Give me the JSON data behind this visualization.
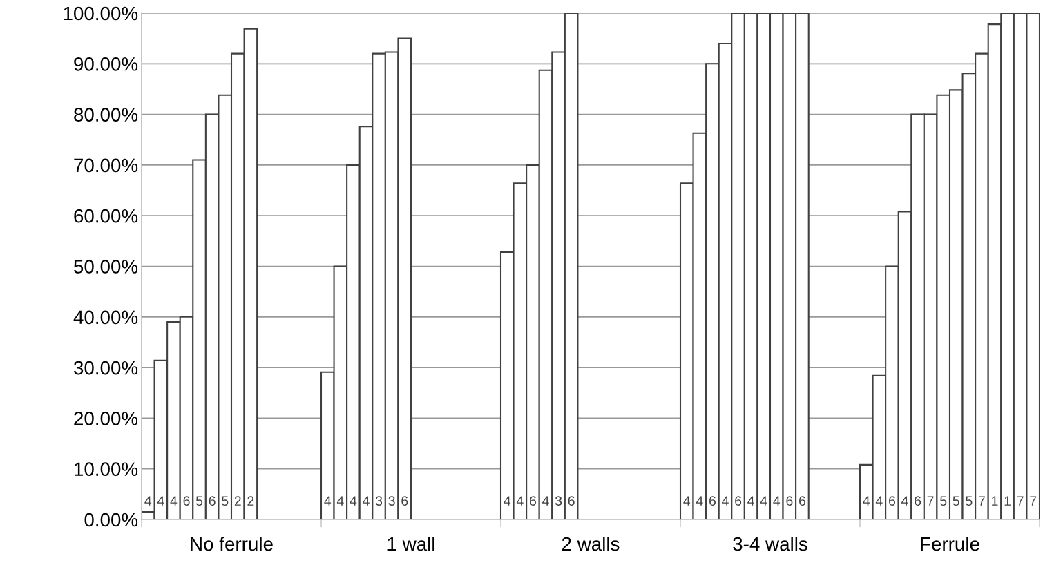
{
  "chart_data": {
    "type": "bar",
    "categories": [
      "No ferrule",
      "1 wall",
      "2 walls",
      "3-4 walls",
      "Ferrule"
    ],
    "series": [
      {
        "color": "#ffffff",
        "values": [
          1.5,
          29.1,
          52.8,
          66.4,
          10.8
        ]
      },
      {
        "color": "#ffffff",
        "values": [
          31.4,
          50,
          66.4,
          76.3,
          28.4
        ]
      },
      {
        "color": "#ffffff",
        "values": [
          39,
          70,
          70,
          90,
          50
        ]
      },
      {
        "color": "#ffffff",
        "values": [
          40,
          77.6,
          88.7,
          94,
          60.8
        ]
      },
      {
        "color": "#ffffff",
        "values": [
          71,
          92,
          92.3,
          100,
          80
        ]
      },
      {
        "color": "#ffffff",
        "values": [
          80,
          92.3,
          100,
          100,
          80
        ]
      },
      {
        "color": "#ffffff",
        "values": [
          83.8,
          95,
          null,
          100,
          83.8
        ]
      },
      {
        "color": "#ffffff",
        "values": [
          92,
          null,
          null,
          100,
          84.8
        ]
      },
      {
        "color": "#ffffff",
        "values": [
          96.9,
          null,
          null,
          100,
          88.1
        ]
      },
      {
        "color": "#ffffff",
        "values": [
          null,
          null,
          null,
          100,
          92
        ]
      },
      {
        "color": "#ffffff",
        "values": [
          null,
          null,
          null,
          null,
          97.8
        ]
      },
      {
        "color": "#ffffff",
        "values": [
          null,
          null,
          null,
          null,
          100
        ]
      },
      {
        "color": "#ffffff",
        "values": [
          null,
          null,
          null,
          null,
          100
        ]
      },
      {
        "color": "#ffffff",
        "values": [
          null,
          null,
          null,
          null,
          100
        ]
      }
    ],
    "annotations": [
      "4",
      "4",
      "4",
      "6",
      "5",
      "6",
      "5",
      "2",
      "2",
      "4",
      "4",
      "4",
      "4",
      "3",
      "3",
      "6",
      "4",
      "4",
      "6",
      "4",
      "3",
      "6",
      "4",
      "4",
      "6",
      "4",
      "6",
      "4",
      "4",
      "4",
      "6",
      "6",
      "4",
      "4",
      "6",
      "4",
      "6",
      "7",
      "5",
      "5",
      "5",
      "7",
      "1",
      "1",
      "7",
      "7"
    ],
    "ylim": [
      0,
      100
    ],
    "yticks": [
      {
        "value": 0,
        "label": "0.00%"
      },
      {
        "value": 10,
        "label": "10.00%"
      },
      {
        "value": 20,
        "label": "20.00%"
      },
      {
        "value": 30,
        "label": "30.00%"
      },
      {
        "value": 40,
        "label": "40.00%"
      },
      {
        "value": 50,
        "label": "50.00%"
      },
      {
        "value": 60,
        "label": "60.00%"
      },
      {
        "value": 70,
        "label": "70.00%"
      },
      {
        "value": 80,
        "label": "80.00%"
      },
      {
        "value": 90,
        "label": "90.00%"
      },
      {
        "value": 100,
        "label": "100.00%"
      }
    ],
    "grid": "y"
  }
}
